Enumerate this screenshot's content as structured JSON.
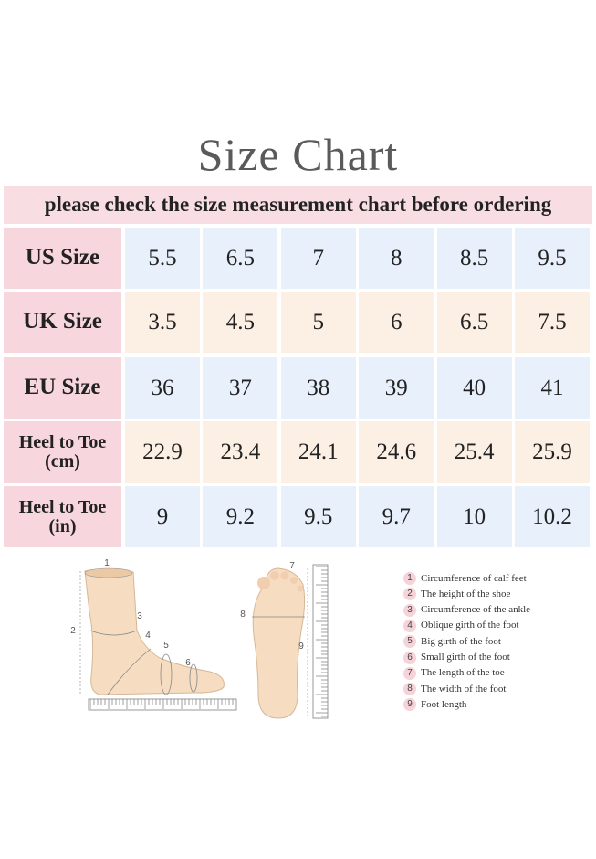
{
  "title": "Size  Chart",
  "subtitle": "please check the size measurement chart before ordering",
  "table": {
    "rows": [
      {
        "label": [
          "US Size"
        ],
        "cells": [
          "5.5",
          "6.5",
          "7",
          "8",
          "8.5",
          "9.5"
        ]
      },
      {
        "label": [
          "UK Size"
        ],
        "cells": [
          "3.5",
          "4.5",
          "5",
          "6",
          "6.5",
          "7.5"
        ]
      },
      {
        "label": [
          "EU Size"
        ],
        "cells": [
          "36",
          "37",
          "38",
          "39",
          "40",
          "41"
        ]
      },
      {
        "label": [
          "Heel to Toe",
          "(cm)"
        ],
        "cells": [
          "22.9",
          "23.4",
          "24.1",
          "24.6",
          "25.4",
          "25.9"
        ]
      },
      {
        "label": [
          "Heel to Toe",
          "(in)"
        ],
        "cells": [
          "9",
          "9.2",
          "9.5",
          "9.7",
          "10",
          "10.2"
        ]
      }
    ]
  },
  "diagram": {
    "markers": [
      "1",
      "2",
      "3",
      "4",
      "5",
      "6",
      "7",
      "8",
      "9"
    ]
  },
  "legend": {
    "items": [
      {
        "number": "1",
        "text": "Circumference of calf feet"
      },
      {
        "number": "2",
        "text": "The height of the shoe"
      },
      {
        "number": "3",
        "text": "Circumference of the ankle"
      },
      {
        "number": "4",
        "text": "Oblique girth of the foot"
      },
      {
        "number": "5",
        "text": "Big girth of the foot"
      },
      {
        "number": "6",
        "text": "Small girth of the foot"
      },
      {
        "number": "7",
        "text": "The length of the toe"
      },
      {
        "number": "8",
        "text": "The width of the foot"
      },
      {
        "number": "9",
        "text": "Foot length"
      }
    ]
  }
}
